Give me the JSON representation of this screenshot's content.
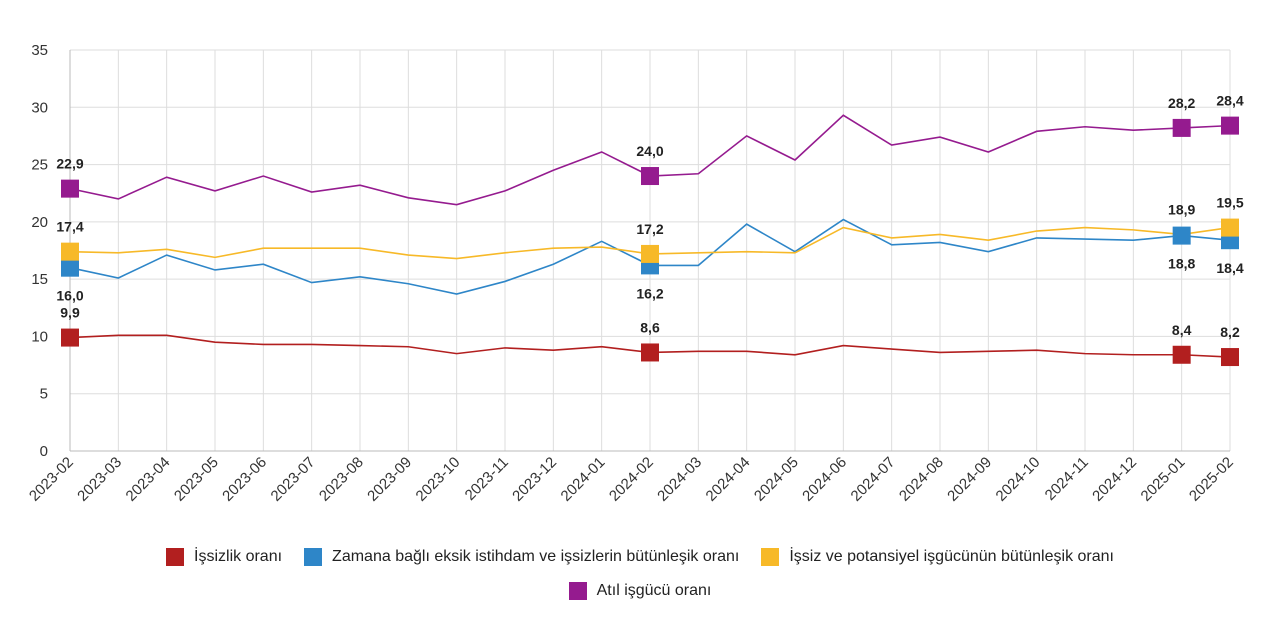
{
  "chart_data": {
    "type": "line",
    "ylim": [
      0,
      35
    ],
    "yticks": [
      "0",
      "5",
      "10",
      "15",
      "20",
      "25",
      "30",
      "35"
    ],
    "grid": true,
    "legend_position": "bottom",
    "categories": [
      "2023-02",
      "2023-03",
      "2023-04",
      "2023-05",
      "2023-06",
      "2023-07",
      "2023-08",
      "2023-09",
      "2023-10",
      "2023-11",
      "2023-12",
      "2024-01",
      "2024-02",
      "2024-03",
      "2024-04",
      "2024-05",
      "2024-06",
      "2024-07",
      "2024-08",
      "2024-09",
      "2024-10",
      "2024-11",
      "2024-12",
      "2025-01",
      "2025-02"
    ],
    "series": [
      {
        "name": "İşsizlik oranı",
        "color": "#b21f1f",
        "values": [
          9.9,
          10.1,
          10.1,
          9.5,
          9.3,
          9.3,
          9.2,
          9.1,
          8.5,
          9.0,
          8.8,
          9.1,
          8.6,
          8.7,
          8.7,
          8.4,
          9.2,
          8.9,
          8.6,
          8.7,
          8.8,
          8.5,
          8.4,
          8.4,
          8.2
        ],
        "markers": [
          0,
          12,
          23,
          24
        ],
        "labels": [
          {
            "i": 0,
            "text": "9,9",
            "pos": "above"
          },
          {
            "i": 12,
            "text": "8,6",
            "pos": "above"
          },
          {
            "i": 23,
            "text": "8,4",
            "pos": "above"
          },
          {
            "i": 24,
            "text": "8,2",
            "pos": "above"
          }
        ]
      },
      {
        "name": "Zamana bağlı eksik istihdam ve işsizlerin bütünleşik oranı",
        "color": "#2e86c8",
        "values": [
          16.0,
          15.1,
          17.1,
          15.8,
          16.3,
          14.7,
          15.2,
          14.6,
          13.7,
          14.8,
          16.3,
          18.3,
          16.2,
          16.2,
          19.8,
          17.4,
          20.2,
          18.0,
          18.2,
          17.4,
          18.6,
          18.5,
          18.4,
          18.8,
          18.4
        ],
        "markers": [
          0,
          12,
          23,
          24
        ],
        "labels": [
          {
            "i": 0,
            "text": "16,0",
            "pos": "below"
          },
          {
            "i": 12,
            "text": "16,2",
            "pos": "below"
          },
          {
            "i": 23,
            "text": "18,8",
            "pos": "below"
          },
          {
            "i": 24,
            "text": "18,4",
            "pos": "below"
          }
        ]
      },
      {
        "name": "İşsiz ve potansiyel işgücünün bütünleşik oranı",
        "color": "#f7b928",
        "values": [
          17.4,
          17.3,
          17.6,
          16.9,
          17.7,
          17.7,
          17.7,
          17.1,
          16.8,
          17.3,
          17.7,
          17.8,
          17.2,
          17.3,
          17.4,
          17.3,
          19.5,
          18.6,
          18.9,
          18.4,
          19.2,
          19.5,
          19.3,
          18.9,
          19.5
        ],
        "markers": [
          0,
          12,
          24
        ],
        "labels": [
          {
            "i": 0,
            "text": "17,4",
            "pos": "above"
          },
          {
            "i": 12,
            "text": "17,2",
            "pos": "above"
          },
          {
            "i": 23,
            "text": "18,9",
            "pos": "above"
          },
          {
            "i": 24,
            "text": "19,5",
            "pos": "above"
          }
        ]
      },
      {
        "name": "Atıl işgücü oranı",
        "color": "#951b8f",
        "values": [
          22.9,
          22.0,
          23.9,
          22.7,
          24.0,
          22.6,
          23.2,
          22.1,
          21.5,
          22.7,
          24.5,
          26.1,
          24.0,
          24.2,
          27.5,
          25.4,
          29.3,
          26.7,
          27.4,
          26.1,
          27.9,
          28.3,
          28.0,
          28.2,
          28.4
        ],
        "markers": [
          0,
          12,
          23,
          24
        ],
        "labels": [
          {
            "i": 0,
            "text": "22,9",
            "pos": "above"
          },
          {
            "i": 12,
            "text": "24,0",
            "pos": "above"
          },
          {
            "i": 23,
            "text": "28,2",
            "pos": "above"
          },
          {
            "i": 24,
            "text": "28,4",
            "pos": "above"
          }
        ]
      }
    ]
  }
}
